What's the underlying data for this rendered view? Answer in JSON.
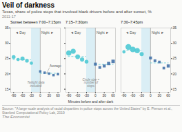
{
  "title": "Veil of darkness",
  "subtitle": "Texas, share of police stops that involved black drivers before and after sunset, %",
  "period": "2011-17",
  "source": "Source: \"A large-scale analysis of racial disparities in police stops across the United States\" by E. Pierson et al.,\nStanford Computational Policy Lab, 2019",
  "credit": "The Economist",
  "background": "#FAFAF8",
  "chart_data": [
    {
      "type": "scatter",
      "title": "Sunset between 7:00–7:15pm",
      "xlim": [
        -100,
        68
      ],
      "ylim": [
        14,
        35
      ],
      "xticks": [
        -90,
        -60,
        -30,
        0,
        30,
        60
      ],
      "yticks": [
        15,
        20,
        25,
        30,
        35
      ],
      "series": [
        {
          "marker": "circle",
          "color": "#4EC9D4",
          "x": [
            -90,
            -75,
            -60,
            -45,
            -30
          ],
          "values": [
            25.5,
            24.7,
            25.0,
            24.3,
            23.5
          ],
          "sizes": [
            12,
            9,
            14,
            11,
            9
          ]
        },
        {
          "marker": "square",
          "color": "#4472A8",
          "x": [
            0,
            15,
            30,
            45,
            60
          ],
          "values": [
            20.8,
            20.4,
            20.1,
            19.6,
            19.9
          ],
          "sizes": [
            6,
            6,
            6,
            6,
            6
          ]
        }
      ],
      "averages": [
        {
          "x": [
            -92,
            -30
          ],
          "value": 24.6,
          "color": "#4EC9D4",
          "line_style": "dashed"
        },
        {
          "x": [
            0,
            62
          ],
          "value": 20.2,
          "color": "#4EC9D4",
          "line_style": "dashed"
        }
      ],
      "band": {
        "x": [
          -30,
          0
        ],
        "color": "#DAEEF5"
      },
      "vline": {
        "x": 0,
        "color": "#999999"
      },
      "labels": [
        {
          "text": "◄ Day",
          "x": -85,
          "y": 33.8
        },
        {
          "text": "Night ►",
          "x": 4,
          "y": 33.8
        }
      ],
      "annotations": [
        {
          "text": "Twilight data\nincluded",
          "x": -15,
          "y": 15.8
        },
        {
          "text": "Average",
          "x": 32,
          "y": 22.2,
          "arrow": [
            22,
            20.2
          ]
        }
      ]
    },
    {
      "type": "scatter",
      "title": "7:15–7:30pm",
      "xlabel": "Minutes before and after dark",
      "xlim": [
        -100,
        68
      ],
      "ylim": [
        14,
        35
      ],
      "xticks": [
        -90,
        -60,
        -30,
        0,
        30,
        60
      ],
      "yticks": [
        15,
        20,
        25,
        30,
        35
      ],
      "tick_labels": "x",
      "series": [
        {
          "marker": "circle",
          "color": "#4EC9D4",
          "x": [
            -90,
            -75,
            -60,
            -45,
            -30
          ],
          "values": [
            26.8,
            27.4,
            25.6,
            24.7,
            24.0
          ],
          "sizes": [
            22,
            20,
            17,
            15,
            12
          ]
        },
        {
          "marker": "square",
          "color": "#4472A8",
          "x": [
            0,
            15,
            30,
            45,
            60
          ],
          "values": [
            23.2,
            22.1,
            22.6,
            23.4,
            24.1
          ],
          "sizes": [
            9,
            8,
            9,
            11,
            12
          ]
        }
      ],
      "averages": [
        {
          "x": [
            -92,
            -30
          ],
          "value": 25.7,
          "color": "#4EC9D4",
          "line_style": "dashed"
        },
        {
          "x": [
            0,
            62
          ],
          "value": 23.1,
          "color": "#4EC9D4",
          "line_style": "dashed"
        }
      ],
      "band": {
        "x": [
          -30,
          0
        ],
        "color": "#DAEEF5"
      },
      "vline": {
        "x": 0,
        "color": "#999999"
      },
      "labels": [
        {
          "text": "◄ Day",
          "x": -85,
          "y": 33.8
        },
        {
          "text": "Night ►",
          "x": 4,
          "y": 33.8
        }
      ],
      "annotations": [
        {
          "text": "Circle size =\nnumber of\nstops.",
          "x": -15,
          "y": 15.8
        }
      ]
    },
    {
      "type": "scatter",
      "title": "7:30–7:45pm",
      "xlim": [
        -100,
        68
      ],
      "ylim": [
        14,
        35
      ],
      "xticks": [
        -90,
        -60,
        -30,
        0,
        30,
        60
      ],
      "yticks": [
        15,
        20,
        25,
        30,
        35
      ],
      "series": [
        {
          "marker": "circle",
          "color": "#4EC9D4",
          "x": [
            -90,
            -75,
            -60,
            -45,
            -30
          ],
          "values": [
            27.2,
            28.8,
            28.0,
            27.6,
            26.5
          ],
          "sizes": [
            9,
            28,
            24,
            22,
            14
          ]
        },
        {
          "marker": "square",
          "color": "#4472A8",
          "x": [
            0,
            15,
            30,
            45,
            60
          ],
          "values": [
            25.2,
            24.3,
            23.9,
            21.9,
            22.6
          ],
          "sizes": [
            9,
            8,
            7,
            7,
            10
          ]
        }
      ],
      "averages": [
        {
          "x": [
            -92,
            -30
          ],
          "value": 27.6,
          "color": "#4EC9D4",
          "line_style": "dashed"
        },
        {
          "x": [
            0,
            62
          ],
          "value": 23.6,
          "color": "#4EC9D4",
          "line_style": "dashed"
        }
      ],
      "band": {
        "x": [
          -30,
          0
        ],
        "color": "#DAEEF5"
      },
      "vline": {
        "x": 0,
        "color": "#999999"
      },
      "labels": [
        {
          "text": "◄ Day",
          "x": -85,
          "y": 33.8
        },
        {
          "text": "Night ►",
          "x": 4,
          "y": 33.8
        }
      ],
      "annotations": []
    }
  ]
}
